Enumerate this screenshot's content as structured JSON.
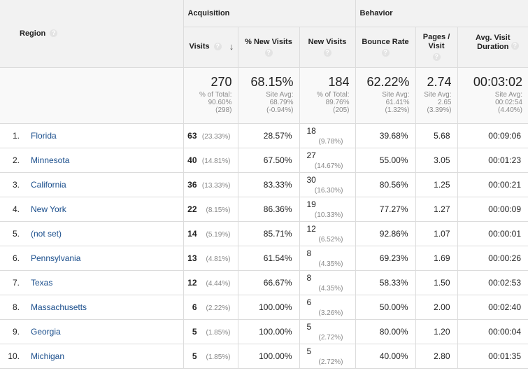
{
  "headers": {
    "region": "Region",
    "acquisition": "Acquisition",
    "behavior": "Behavior",
    "visits": "Visits",
    "sort_indicator": "↓",
    "help_glyph": "?",
    "pct_new_visits": "% New Visits",
    "new_visits": "New Visits",
    "bounce_rate": "Bounce Rate",
    "pages_per_visit": "Pages / Visit",
    "avg_duration": "Avg. Visit Duration"
  },
  "totals": {
    "visits": {
      "value": "270",
      "line1": "% of Total:",
      "line2": "90.60%",
      "line3": "(298)"
    },
    "pct_new": {
      "value": "68.15%",
      "line1": "Site Avg:",
      "line2": "68.79%",
      "line3": "(-0.94%)"
    },
    "new_visits": {
      "value": "184",
      "line1": "% of Total:",
      "line2": "89.76%",
      "line3": "(205)"
    },
    "bounce": {
      "value": "62.22%",
      "line1": "Site Avg:",
      "line2": "61.41%",
      "line3": "(1.32%)"
    },
    "pages": {
      "value": "2.74",
      "line1": "Site Avg:",
      "line2": "2.65",
      "line3": "(3.39%)"
    },
    "duration": {
      "value": "00:03:02",
      "line1": "Site Avg:",
      "line2": "00:02:54",
      "line3": "(4.40%)"
    }
  },
  "rows": [
    {
      "rank": "1.",
      "region": "Florida",
      "visits": "63",
      "visits_pct": "(23.33%)",
      "pct_new": "28.57%",
      "new_visits": "18",
      "new_pct": "(9.78%)",
      "bounce": "39.68%",
      "pages": "5.68",
      "duration": "00:09:06"
    },
    {
      "rank": "2.",
      "region": "Minnesota",
      "visits": "40",
      "visits_pct": "(14.81%)",
      "pct_new": "67.50%",
      "new_visits": "27",
      "new_pct": "(14.67%)",
      "bounce": "55.00%",
      "pages": "3.05",
      "duration": "00:01:23"
    },
    {
      "rank": "3.",
      "region": "California",
      "visits": "36",
      "visits_pct": "(13.33%)",
      "pct_new": "83.33%",
      "new_visits": "30",
      "new_pct": "(16.30%)",
      "bounce": "80.56%",
      "pages": "1.25",
      "duration": "00:00:21"
    },
    {
      "rank": "4.",
      "region": "New York",
      "visits": "22",
      "visits_pct": "(8.15%)",
      "pct_new": "86.36%",
      "new_visits": "19",
      "new_pct": "(10.33%)",
      "bounce": "77.27%",
      "pages": "1.27",
      "duration": "00:00:09"
    },
    {
      "rank": "5.",
      "region": "(not set)",
      "visits": "14",
      "visits_pct": "(5.19%)",
      "pct_new": "85.71%",
      "new_visits": "12",
      "new_pct": "(6.52%)",
      "bounce": "92.86%",
      "pages": "1.07",
      "duration": "00:00:01"
    },
    {
      "rank": "6.",
      "region": "Pennsylvania",
      "visits": "13",
      "visits_pct": "(4.81%)",
      "pct_new": "61.54%",
      "new_visits": "8",
      "new_pct": "(4.35%)",
      "bounce": "69.23%",
      "pages": "1.69",
      "duration": "00:00:26"
    },
    {
      "rank": "7.",
      "region": "Texas",
      "visits": "12",
      "visits_pct": "(4.44%)",
      "pct_new": "66.67%",
      "new_visits": "8",
      "new_pct": "(4.35%)",
      "bounce": "58.33%",
      "pages": "1.50",
      "duration": "00:02:53"
    },
    {
      "rank": "8.",
      "region": "Massachusetts",
      "visits": "6",
      "visits_pct": "(2.22%)",
      "pct_new": "100.00%",
      "new_visits": "6",
      "new_pct": "(3.26%)",
      "bounce": "50.00%",
      "pages": "2.00",
      "duration": "00:02:40"
    },
    {
      "rank": "9.",
      "region": "Georgia",
      "visits": "5",
      "visits_pct": "(1.85%)",
      "pct_new": "100.00%",
      "new_visits": "5",
      "new_pct": "(2.72%)",
      "bounce": "80.00%",
      "pages": "1.20",
      "duration": "00:00:04"
    },
    {
      "rank": "10.",
      "region": "Michigan",
      "visits": "5",
      "visits_pct": "(1.85%)",
      "pct_new": "100.00%",
      "new_visits": "5",
      "new_pct": "(2.72%)",
      "bounce": "40.00%",
      "pages": "2.80",
      "duration": "00:01:35"
    }
  ],
  "colors": {
    "link": "#1a4e8c",
    "header_bg": "#f2f2f2",
    "totals_bg": "#f9f9f9",
    "border": "#dcdcdc"
  }
}
